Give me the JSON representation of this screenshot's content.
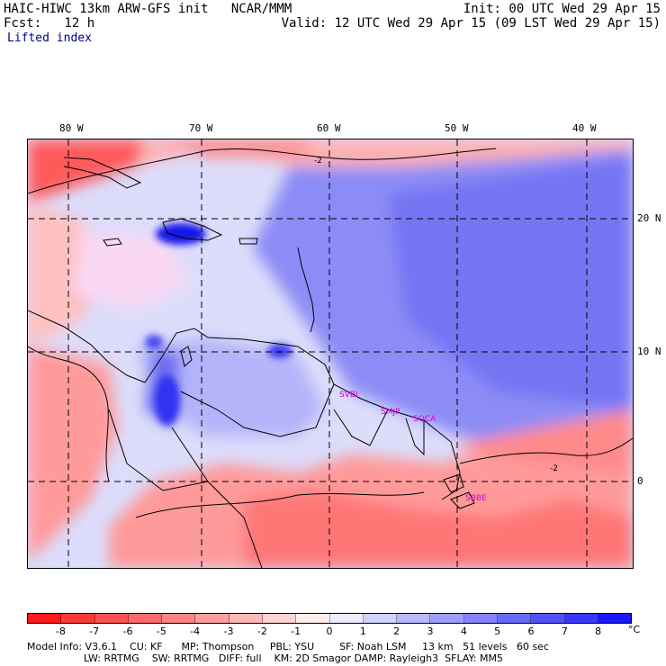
{
  "header": {
    "line1_left": "HAIC-HIWC 13km ARW-GFS init   NCAR/MMM",
    "line1_right": "Init: 00 UTC Wed 29 Apr 15",
    "line2_left": "Fcst:   12 h",
    "line2_right": "Valid: 12 UTC Wed 29 Apr 15 (09 LST Wed 29 Apr 15)",
    "field": "Lifted index"
  },
  "axes": {
    "lon_labels": [
      "80 W",
      "70 W",
      "60 W",
      "50 W",
      "40 W"
    ],
    "lat_labels": [
      "20 N",
      "10 N",
      "0"
    ]
  },
  "stations": [
    "SVBI",
    "SMJP",
    "SOCA",
    "SBBE"
  ],
  "contour_labels": [
    "-2",
    "-2"
  ],
  "colorbar": {
    "unit": "°C",
    "ticks": [
      "-8",
      "-7",
      "-6",
      "-5",
      "-4",
      "-3",
      "-2",
      "-1",
      "0",
      "1",
      "2",
      "3",
      "4",
      "5",
      "6",
      "7",
      "8"
    ],
    "colors": [
      "#ff1a1a",
      "#ff3838",
      "#ff5252",
      "#ff6a6a",
      "#ff8484",
      "#ff9e9e",
      "#ffb8b8",
      "#ffd2d2",
      "#ffecec",
      "#ececff",
      "#d2d2ff",
      "#b8b8ff",
      "#9e9eff",
      "#8484ff",
      "#6a6aff",
      "#5252ff",
      "#3838ff",
      "#1a1aff"
    ]
  },
  "model_info": {
    "line1": "Model Info: V3.6.1    CU: KF      MP: Thompson     PBL: YSU        SF: Noah LSM     13 km   51 levels   60 sec",
    "line2": "                  LW: RRTMG    SW: RRTMG   DIFF: full    KM: 2D Smagor DAMP: Rayleigh3  SFLAY: MM5"
  }
}
